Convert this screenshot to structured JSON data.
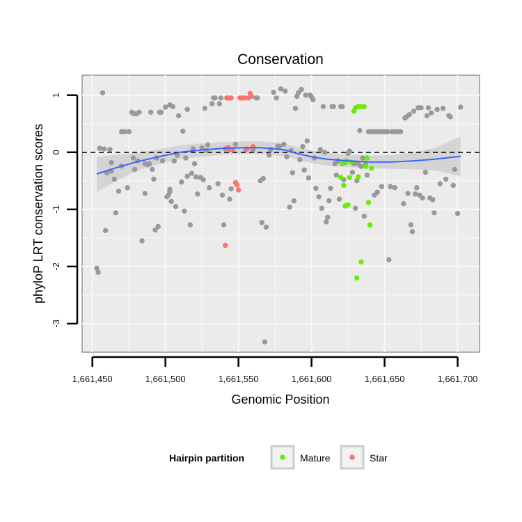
{
  "chart_data": {
    "type": "scatter",
    "title": "Conservation",
    "xlabel": "Genomic Position",
    "ylabel": "phyloP LRT conservation scores",
    "xlim": [
      1661443,
      1661715
    ],
    "ylim": [
      -3.5,
      1.35
    ],
    "x_ticks": [
      1661450,
      1661500,
      1661550,
      1661600,
      1661650,
      1661700
    ],
    "x_tick_labels": [
      "1,661,450",
      "1,661,500",
      "1,661,550",
      "1,661,600",
      "1,661,650",
      "1,661,700"
    ],
    "y_ticks": [
      -3,
      -2,
      -1,
      0,
      1
    ],
    "y_tick_labels": [
      "-3",
      "-2",
      "-1",
      "0",
      "1"
    ],
    "grid": true,
    "reference_line": {
      "y": 0,
      "style": "dashed",
      "color": "#000000"
    },
    "legend": {
      "title": "Hairpin partition",
      "position": "bottom",
      "entries": [
        {
          "label": "Mature",
          "color": "#66ee00"
        },
        {
          "label": "Star",
          "color": "#f8766d"
        }
      ]
    },
    "colors": {
      "background": "#ebebeb",
      "grid": "#f7f7f7",
      "other": "#999999",
      "mature": "#66ee00",
      "star": "#f8766d",
      "smooth": "#3366ff",
      "band": "#cccccc"
    },
    "series": [
      {
        "group": "other",
        "points": [
          [
            1661453,
            -2.03
          ],
          [
            1661454,
            -2.1
          ],
          [
            1661455,
            0.07
          ],
          [
            1661457,
            1.04
          ],
          [
            1661458,
            0.06
          ],
          [
            1661459,
            -1.37
          ],
          [
            1661460,
            -0.36
          ],
          [
            1661462,
            0.05
          ],
          [
            1661463,
            -0.18
          ],
          [
            1661463,
            -0.33
          ],
          [
            1661465,
            -0.47
          ],
          [
            1661466,
            -1.06
          ],
          [
            1661468,
            -0.68
          ],
          [
            1661470,
            0.36
          ],
          [
            1661472,
            0.36
          ],
          [
            1661474,
            -0.62
          ],
          [
            1661475,
            0.36
          ],
          [
            1661477,
            0.7
          ],
          [
            1661478,
            0.68
          ],
          [
            1661479,
            -0.3
          ],
          [
            1661480,
            0.67
          ],
          [
            1661481,
            -0.15
          ],
          [
            1661482,
            0.7
          ],
          [
            1661484,
            -1.55
          ],
          [
            1661486,
            -0.2
          ],
          [
            1661488,
            -0.22
          ],
          [
            1661489,
            -0.2
          ],
          [
            1661490,
            0.7
          ],
          [
            1661491,
            -0.3
          ],
          [
            1661492,
            -0.47
          ],
          [
            1661493,
            -1.36
          ],
          [
            1661494,
            -0.1
          ],
          [
            1661495,
            -1.3
          ],
          [
            1661496,
            0.7
          ],
          [
            1661497,
            0.7
          ],
          [
            1661498,
            -0.15
          ],
          [
            1661500,
            0.79
          ],
          [
            1661501,
            -0.78
          ],
          [
            1661502,
            -0.75
          ],
          [
            1661503,
            0.83
          ],
          [
            1661503,
            -0.69
          ],
          [
            1661504,
            -0.86
          ],
          [
            1661505,
            0.8
          ],
          [
            1661506,
            -0.15
          ],
          [
            1661507,
            -0.95
          ],
          [
            1661508,
            -0.05
          ],
          [
            1661509,
            0.64
          ],
          [
            1661511,
            -0.52
          ],
          [
            1661512,
            0.37
          ],
          [
            1661513,
            -1.03
          ],
          [
            1661514,
            -0.1
          ],
          [
            1661515,
            -0.42
          ],
          [
            1661515,
            0.75
          ],
          [
            1661517,
            -1.27
          ],
          [
            1661518,
            -0.37
          ],
          [
            1661519,
            0.06
          ],
          [
            1661521,
            -0.43
          ],
          [
            1661522,
            -0.73
          ],
          [
            1661524,
            -0.44
          ],
          [
            1661525,
            0.08
          ],
          [
            1661526,
            -0.48
          ],
          [
            1661527,
            0.77
          ],
          [
            1661528,
            0.03
          ],
          [
            1661529,
            0.13
          ],
          [
            1661530,
            -0.62
          ],
          [
            1661532,
            0.85
          ],
          [
            1661533,
            0.95
          ],
          [
            1661534,
            0.95
          ],
          [
            1661536,
            -0.55
          ],
          [
            1661537,
            0.85
          ],
          [
            1661538,
            0.95
          ],
          [
            1661539,
            -0.75
          ],
          [
            1661540,
            -1.27
          ],
          [
            1661541,
            0.06
          ],
          [
            1661544,
            -0.82
          ],
          [
            1661545,
            -0.64
          ],
          [
            1661548,
            0.14
          ],
          [
            1661555,
            0.05
          ],
          [
            1661560,
            0.05
          ],
          [
            1661562,
            0.95
          ],
          [
            1661563,
            0.95
          ],
          [
            1661565,
            -0.5
          ],
          [
            1661566,
            -1.23
          ],
          [
            1661567,
            -0.46
          ],
          [
            1661569,
            -1.31
          ],
          [
            1661571,
            -0.05
          ],
          [
            1661572,
            0.05
          ],
          [
            1661574,
            1.05
          ],
          [
            1661576,
            0.95
          ],
          [
            1661577,
            0.11
          ],
          [
            1661578,
            0.1
          ],
          [
            1661579,
            1.11
          ],
          [
            1661581,
            0.14
          ],
          [
            1661582,
            1.07
          ],
          [
            1661583,
            -0.08
          ],
          [
            1661585,
            -0.96
          ],
          [
            1661586,
            0.03
          ],
          [
            1661587,
            -0.36
          ],
          [
            1661588,
            -0.85
          ],
          [
            1661589,
            0.77
          ],
          [
            1661590,
            0.98
          ],
          [
            1661591,
            1.04
          ],
          [
            1661592,
            -0.13
          ],
          [
            1661593,
            1.1
          ],
          [
            1661594,
            0.1
          ],
          [
            1661595,
            -0.31
          ],
          [
            1661596,
            1.0
          ],
          [
            1661597,
            0.2
          ],
          [
            1661598,
            -0.45
          ],
          [
            1661599,
            1.0
          ],
          [
            1661600,
            0.97
          ],
          [
            1661601,
            0.92
          ],
          [
            1661602,
            -0.1
          ],
          [
            1661603,
            -0.63
          ],
          [
            1661605,
            -0.78
          ],
          [
            1661606,
            0.05
          ],
          [
            1661607,
            -0.98
          ],
          [
            1661608,
            0.8
          ],
          [
            1661609,
            0.0
          ],
          [
            1661610,
            -1.22
          ],
          [
            1661611,
            -1.14
          ],
          [
            1661612,
            -0.85
          ],
          [
            1661613,
            -0.63
          ],
          [
            1661614,
            0.8
          ],
          [
            1661615,
            0.8
          ],
          [
            1661616,
            -0.2
          ],
          [
            1661617,
            -0.4
          ],
          [
            1661618,
            -0.15
          ],
          [
            1661619,
            -0.82
          ],
          [
            1661620,
            0.8
          ],
          [
            1661621,
            0.8
          ],
          [
            1661622,
            -0.48
          ],
          [
            1661623,
            -0.18
          ],
          [
            1661625,
            -0.02
          ],
          [
            1661626,
            0.02
          ],
          [
            1661628,
            -0.35
          ],
          [
            1661629,
            -0.2
          ],
          [
            1661630,
            -0.98
          ],
          [
            1661631,
            -0.5
          ],
          [
            1661632,
            -0.2
          ],
          [
            1661633,
            0.38
          ],
          [
            1661634,
            -0.25
          ],
          [
            1661635,
            -0.1
          ],
          [
            1661636,
            -1.12
          ],
          [
            1661637,
            -0.21
          ],
          [
            1661638,
            -0.4
          ],
          [
            1661639,
            0.36
          ],
          [
            1661640,
            0.36
          ],
          [
            1661641,
            0.36
          ],
          [
            1661642,
            0.36
          ],
          [
            1661643,
            -0.75
          ],
          [
            1661644,
            0.36
          ],
          [
            1661645,
            -0.7
          ],
          [
            1661646,
            0.36
          ],
          [
            1661647,
            0.36
          ],
          [
            1661648,
            -0.6
          ],
          [
            1661649,
            0.36
          ],
          [
            1661650,
            0.36
          ],
          [
            1661651,
            0.36
          ],
          [
            1661652,
            0.36
          ],
          [
            1661653,
            -1.88
          ],
          [
            1661654,
            -0.6
          ],
          [
            1661655,
            0.36
          ],
          [
            1661656,
            0.36
          ],
          [
            1661657,
            -0.62
          ],
          [
            1661658,
            0.36
          ],
          [
            1661659,
            0.36
          ],
          [
            1661660,
            0.36
          ],
          [
            1661661,
            0.36
          ],
          [
            1661663,
            -0.9
          ],
          [
            1661664,
            0.6
          ],
          [
            1661665,
            0.62
          ],
          [
            1661666,
            -0.72
          ],
          [
            1661667,
            0.66
          ],
          [
            1661668,
            -1.27
          ],
          [
            1661669,
            -1.39
          ],
          [
            1661670,
            0.72
          ],
          [
            1661671,
            -0.73
          ],
          [
            1661672,
            -0.62
          ],
          [
            1661673,
            0.78
          ],
          [
            1661674,
            -0.75
          ],
          [
            1661675,
            0.78
          ],
          [
            1661676,
            -0.8
          ],
          [
            1661678,
            -0.35
          ],
          [
            1661679,
            0.64
          ],
          [
            1661680,
            0.78
          ],
          [
            1661681,
            -0.8
          ],
          [
            1661682,
            0.69
          ],
          [
            1661683,
            -0.83
          ],
          [
            1661684,
            -1.06
          ],
          [
            1661686,
            0.75
          ],
          [
            1661688,
            -0.55
          ],
          [
            1661690,
            0.77
          ],
          [
            1661692,
            -0.47
          ],
          [
            1661694,
            0.64
          ],
          [
            1661695,
            0.62
          ],
          [
            1661697,
            -0.58
          ],
          [
            1661698,
            -0.3
          ],
          [
            1661700,
            -1.07
          ],
          [
            1661702,
            0.79
          ],
          [
            1661568,
            -3.32
          ],
          [
            1661503,
            -0.65
          ],
          [
            1661520,
            -0.2
          ],
          [
            1661470,
            -0.24
          ],
          [
            1661486,
            -0.72
          ],
          [
            1661478,
            -0.1
          ]
        ]
      },
      {
        "group": "mature",
        "name": "Mature",
        "points": [
          [
            1661620,
            -0.44
          ],
          [
            1661621,
            -0.2
          ],
          [
            1661622,
            -0.58
          ],
          [
            1661623,
            -0.94
          ],
          [
            1661624,
            -0.15
          ],
          [
            1661625,
            -0.92
          ],
          [
            1661626,
            -0.44
          ],
          [
            1661627,
            -0.17
          ],
          [
            1661629,
            0.72
          ],
          [
            1661630,
            0.78
          ],
          [
            1661631,
            -2.2
          ],
          [
            1661632,
            0.8
          ],
          [
            1661632,
            -0.43
          ],
          [
            1661633,
            0.8
          ],
          [
            1661634,
            -1.92
          ],
          [
            1661635,
            0.8
          ],
          [
            1661636,
            0.8
          ],
          [
            1661637,
            -0.25
          ],
          [
            1661638,
            -0.1
          ],
          [
            1661639,
            -0.88
          ],
          [
            1661640,
            -1.27
          ],
          [
            1661641,
            -0.28
          ]
        ]
      },
      {
        "group": "star",
        "name": "Star",
        "points": [
          [
            1661541,
            -1.63
          ],
          [
            1661542,
            0.95
          ],
          [
            1661543,
            0.95
          ],
          [
            1661543,
            0.08
          ],
          [
            1661544,
            0.05
          ],
          [
            1661545,
            0.95
          ],
          [
            1661546,
            0.05
          ],
          [
            1661548,
            -0.53
          ],
          [
            1661549,
            -0.57
          ],
          [
            1661550,
            -0.66
          ],
          [
            1661551,
            0.95
          ],
          [
            1661552,
            0.95
          ],
          [
            1661553,
            0.95
          ],
          [
            1661554,
            0.95
          ],
          [
            1661555,
            0.95
          ],
          [
            1661556,
            0.06
          ],
          [
            1661557,
            0.95
          ],
          [
            1661558,
            1.03
          ],
          [
            1661559,
            0.98
          ],
          [
            1661560,
            0.1
          ]
        ]
      }
    ],
    "smooth_line": {
      "points": [
        [
          1661453,
          -0.38
        ],
        [
          1661465,
          -0.28
        ],
        [
          1661480,
          -0.17
        ],
        [
          1661495,
          -0.08
        ],
        [
          1661510,
          0.0
        ],
        [
          1661525,
          0.04
        ],
        [
          1661540,
          0.07
        ],
        [
          1661555,
          0.08
        ],
        [
          1661565,
          0.08
        ],
        [
          1661575,
          0.06
        ],
        [
          1661582,
          0.04
        ],
        [
          1661590,
          -0.02
        ],
        [
          1661600,
          -0.08
        ],
        [
          1661610,
          -0.12
        ],
        [
          1661625,
          -0.15
        ],
        [
          1661640,
          -0.17
        ],
        [
          1661655,
          -0.17
        ],
        [
          1661670,
          -0.15
        ],
        [
          1661685,
          -0.12
        ],
        [
          1661702,
          -0.07
        ]
      ],
      "band": [
        [
          1661453,
          -0.7,
          -0.08
        ],
        [
          1661465,
          -0.52,
          -0.05
        ],
        [
          1661480,
          -0.33,
          -0.01
        ],
        [
          1661495,
          -0.21,
          0.05
        ],
        [
          1661510,
          -0.12,
          0.12
        ],
        [
          1661525,
          -0.08,
          0.16
        ],
        [
          1661540,
          -0.04,
          0.18
        ],
        [
          1661555,
          -0.03,
          0.19
        ],
        [
          1661565,
          -0.03,
          0.19
        ],
        [
          1661575,
          -0.05,
          0.17
        ],
        [
          1661582,
          -0.07,
          0.15
        ],
        [
          1661590,
          -0.13,
          0.09
        ],
        [
          1661600,
          -0.19,
          0.03
        ],
        [
          1661610,
          -0.23,
          -0.01
        ],
        [
          1661625,
          -0.26,
          -0.04
        ],
        [
          1661640,
          -0.28,
          -0.06
        ],
        [
          1661655,
          -0.29,
          -0.05
        ],
        [
          1661670,
          -0.3,
          0.0
        ],
        [
          1661685,
          -0.32,
          0.08
        ],
        [
          1661702,
          -0.42,
          0.28
        ]
      ]
    }
  }
}
